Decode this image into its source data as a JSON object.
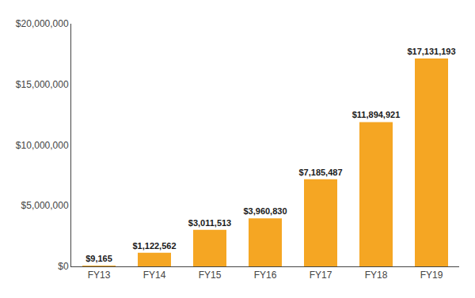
{
  "chart_data": {
    "type": "bar",
    "categories": [
      "FY13",
      "FY14",
      "FY15",
      "FY16",
      "FY17",
      "FY18",
      "FY19"
    ],
    "values": [
      9165,
      1122562,
      3011513,
      3960830,
      7185487,
      11894921,
      17131193
    ],
    "value_labels": [
      "$9,165",
      "$1,122,562",
      "$3,011,513",
      "$3,960,830",
      "$7,185,487",
      "$11,894,921",
      "$17,131,193"
    ],
    "color": "#F5A623",
    "ylim": [
      0,
      20000000
    ],
    "yticks": [
      {
        "value": 0,
        "label": "$0"
      },
      {
        "value": 5000000,
        "label": "$5,000,000"
      },
      {
        "value": 10000000,
        "label": "$10,000,000"
      },
      {
        "value": 15000000,
        "label": "$15,000,000"
      },
      {
        "value": 20000000,
        "label": "$20,000,000"
      }
    ],
    "grid": false,
    "data_labels": true
  }
}
